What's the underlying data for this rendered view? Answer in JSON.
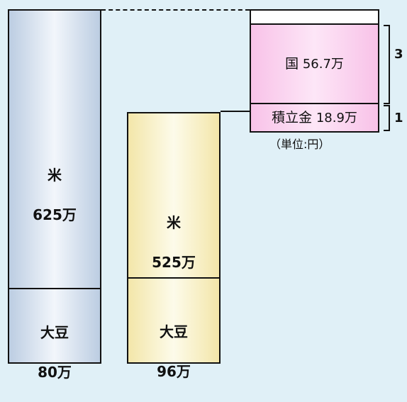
{
  "diagram": {
    "left_column": {
      "segments": [
        {
          "name": "米",
          "amount": "625万"
        },
        {
          "name": "大豆",
          "amount": "80万"
        }
      ]
    },
    "right_column": {
      "segments": [
        {
          "name": "米",
          "amount": "525万"
        },
        {
          "name": "大豆",
          "amount": "96万"
        }
      ]
    },
    "kuni_box": {
      "name": "国",
      "amount": "56.7万"
    },
    "tsumitate_box": {
      "name": "積立金",
      "amount": "18.9万"
    },
    "bracket_labels": {
      "kuni": "3",
      "tsumitate": "1"
    },
    "unit": "（単位:円）"
  }
}
